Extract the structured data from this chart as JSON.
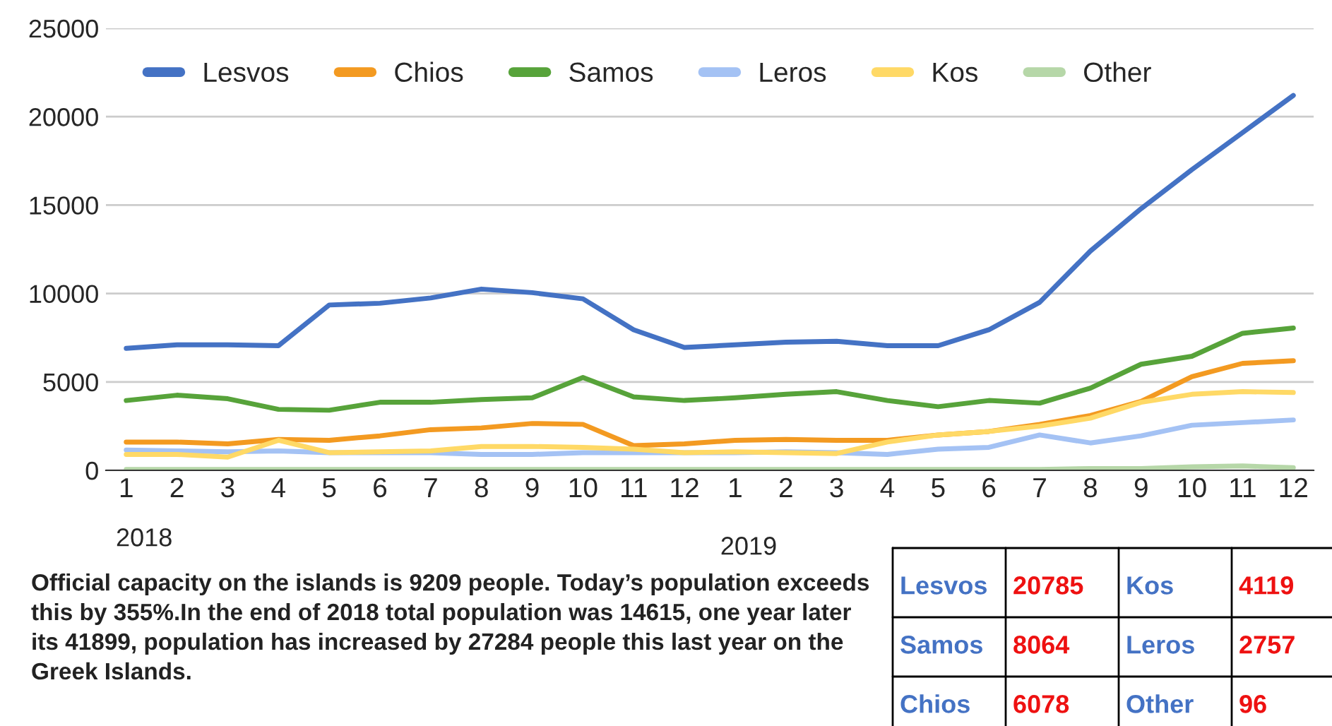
{
  "chart_data": {
    "type": "line",
    "categories": [
      "1",
      "2",
      "3",
      "4",
      "5",
      "6",
      "7",
      "8",
      "9",
      "10",
      "11",
      "12",
      "1",
      "2",
      "3",
      "4",
      "5",
      "6",
      "7",
      "8",
      "9",
      "10",
      "11",
      "12"
    ],
    "series": [
      {
        "name": "Lesvos",
        "color": "#4472c4",
        "values": [
          6900,
          7100,
          7100,
          7050,
          9350,
          9450,
          9750,
          10250,
          10050,
          9700,
          7950,
          6950,
          7100,
          7250,
          7300,
          7050,
          7050,
          7950,
          9500,
          12400,
          14800,
          17000,
          19100,
          21200
        ]
      },
      {
        "name": "Chios",
        "color": "#f39a21",
        "values": [
          1600,
          1600,
          1500,
          1750,
          1700,
          1950,
          2300,
          2400,
          2650,
          2600,
          1400,
          1500,
          1700,
          1750,
          1700,
          1700,
          2000,
          2200,
          2600,
          3100,
          3900,
          5300,
          6050,
          6200
        ]
      },
      {
        "name": "Samos",
        "color": "#57a33a",
        "values": [
          3950,
          4250,
          4050,
          3450,
          3400,
          3850,
          3850,
          4000,
          4100,
          5250,
          4150,
          3950,
          4100,
          4300,
          4450,
          3950,
          3600,
          3950,
          3800,
          4650,
          6000,
          6450,
          7750,
          8050
        ]
      },
      {
        "name": "Leros",
        "color": "#a4c2f4",
        "values": [
          1150,
          1100,
          1050,
          1100,
          1000,
          1000,
          1000,
          900,
          900,
          1000,
          1000,
          1000,
          1000,
          1050,
          1000,
          900,
          1200,
          1300,
          2000,
          1550,
          1950,
          2550,
          2700,
          2850
        ]
      },
      {
        "name": "Kos",
        "color": "#ffd966",
        "values": [
          900,
          900,
          750,
          1700,
          1000,
          1050,
          1100,
          1350,
          1350,
          1300,
          1200,
          1000,
          1050,
          1000,
          950,
          1600,
          2000,
          2200,
          2500,
          2950,
          3850,
          4300,
          4450,
          4400
        ]
      },
      {
        "name": "Other",
        "color": "#b6d7a8",
        "values": [
          50,
          50,
          50,
          50,
          50,
          50,
          50,
          50,
          50,
          50,
          50,
          50,
          50,
          50,
          50,
          50,
          50,
          50,
          50,
          100,
          100,
          200,
          250,
          150
        ]
      }
    ],
    "ylim": [
      0,
      25000
    ],
    "yticks": [
      0,
      5000,
      10000,
      15000,
      20000,
      25000
    ],
    "grid": "y",
    "legend": "top",
    "marker": "none",
    "line_style": "solid",
    "annotations": [
      "2018",
      "2019",
      "Official capacity on the islands is 9209 people. Today’s population exceeds this by 355%.In the end of 2018 total population was 14615, one year later its 41899, population has increased by 27284 people this last year on the Greek Islands.",
      "Lesvos",
      "20785",
      "Kos",
      "4119",
      "Samos",
      "8064",
      "Leros",
      "2757",
      "Chios",
      "6078",
      "Other",
      "96"
    ]
  }
}
